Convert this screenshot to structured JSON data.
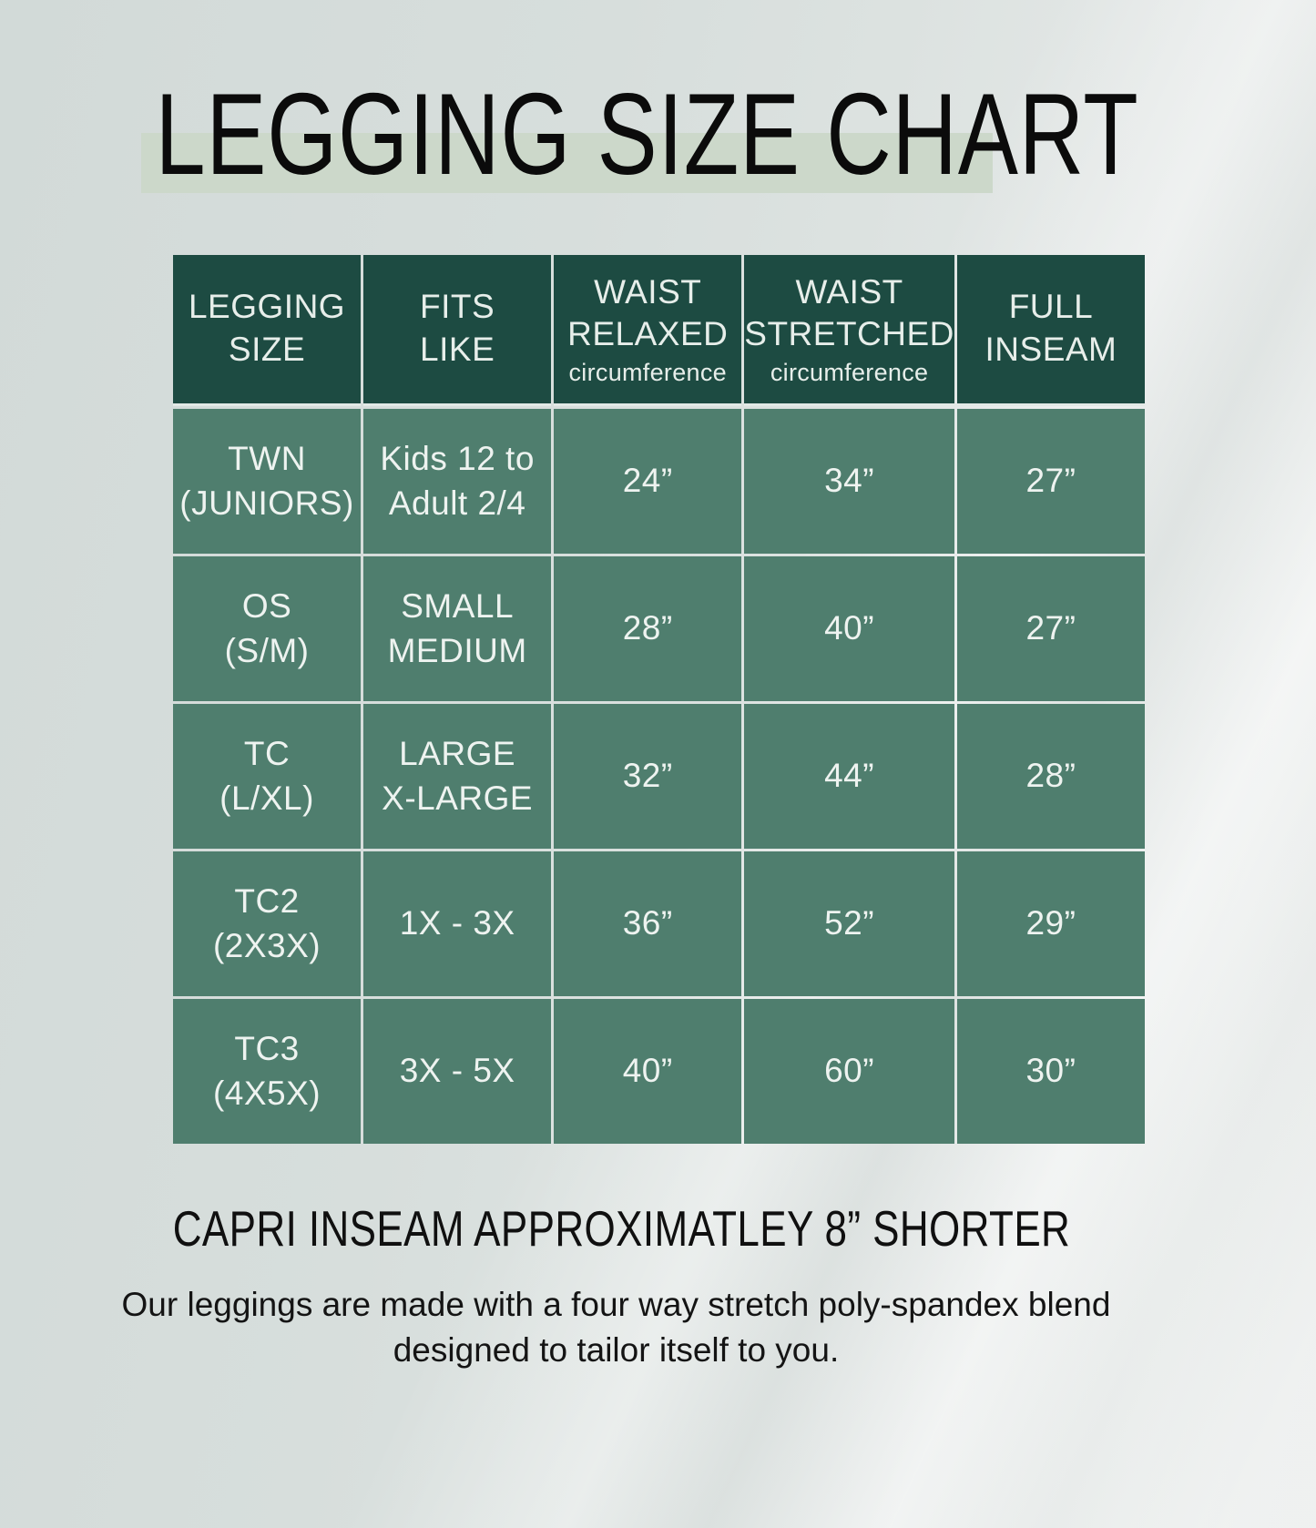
{
  "page": {
    "title": "LEGGING SIZE CHART",
    "note_heading": "CAPRI INSEAM APPROXIMATLEY 8” SHORTER",
    "description_line1": "Our leggings are made with a four way stretch poly-spandex blend",
    "description_line2": "designed to tailor itself to you."
  },
  "colors": {
    "background": "#d8dfdd",
    "title_highlight_band": "#ccd8ca",
    "table_header_bg": "#1d4b42",
    "table_row_bg": "#4f7e6e",
    "table_divider": "#e2e9e6",
    "table_text": "#eef3f0",
    "body_text": "#101010"
  },
  "table": {
    "headers": [
      {
        "line1": "LEGGING",
        "line2": "SIZE",
        "sub": ""
      },
      {
        "line1": "FITS",
        "line2": "LIKE",
        "sub": ""
      },
      {
        "line1": "WAIST",
        "line2": "RELAXED",
        "sub": "circumference"
      },
      {
        "line1": "WAIST",
        "line2": "STRETCHED",
        "sub": "circumference"
      },
      {
        "line1": "FULL",
        "line2": "INSEAM",
        "sub": ""
      }
    ],
    "rows": [
      {
        "size1": "TWN",
        "size2": "(JUNIORS)",
        "fits1": "Kids 12 to",
        "fits2": "Adult 2/4",
        "relaxed": "24”",
        "stretched": "34”",
        "inseam": "27”"
      },
      {
        "size1": "OS",
        "size2": "(S/M)",
        "fits1": "SMALL",
        "fits2": "MEDIUM",
        "relaxed": "28”",
        "stretched": "40”",
        "inseam": "27”"
      },
      {
        "size1": "TC",
        "size2": "(L/XL)",
        "fits1": "LARGE",
        "fits2": "X-LARGE",
        "relaxed": "32”",
        "stretched": "44”",
        "inseam": "28”"
      },
      {
        "size1": "TC2",
        "size2": "(2X3X)",
        "fits1": "1X - 3X",
        "fits2": "",
        "relaxed": "36”",
        "stretched": "52”",
        "inseam": "29”"
      },
      {
        "size1": "TC3",
        "size2": "(4X5X)",
        "fits1": "3X - 5X",
        "fits2": "",
        "relaxed": "40”",
        "stretched": "60”",
        "inseam": "30”"
      }
    ]
  },
  "chart_data": {
    "type": "table",
    "title": "LEGGING SIZE CHART",
    "columns": [
      "LEGGING SIZE",
      "FITS LIKE",
      "WAIST RELAXED circumference",
      "WAIST STRETCHED circumference",
      "FULL INSEAM"
    ],
    "rows": [
      [
        "TWN (JUNIORS)",
        "Kids 12 to Adult 2/4",
        "24”",
        "34”",
        "27”"
      ],
      [
        "OS (S/M)",
        "SMALL MEDIUM",
        "28”",
        "40”",
        "27”"
      ],
      [
        "TC (L/XL)",
        "LARGE X-LARGE",
        "32”",
        "44”",
        "28”"
      ],
      [
        "TC2 (2X3X)",
        "1X - 3X",
        "36”",
        "52”",
        "29”"
      ],
      [
        "TC3 (4X5X)",
        "3X - 5X",
        "40”",
        "60”",
        "30”"
      ]
    ],
    "notes": [
      "CAPRI INSEAM APPROXIMATLEY 8” SHORTER",
      "Our leggings are made with a four way stretch poly-spandex blend designed to tailor itself to you."
    ],
    "legend_position": "none",
    "grid": true
  }
}
